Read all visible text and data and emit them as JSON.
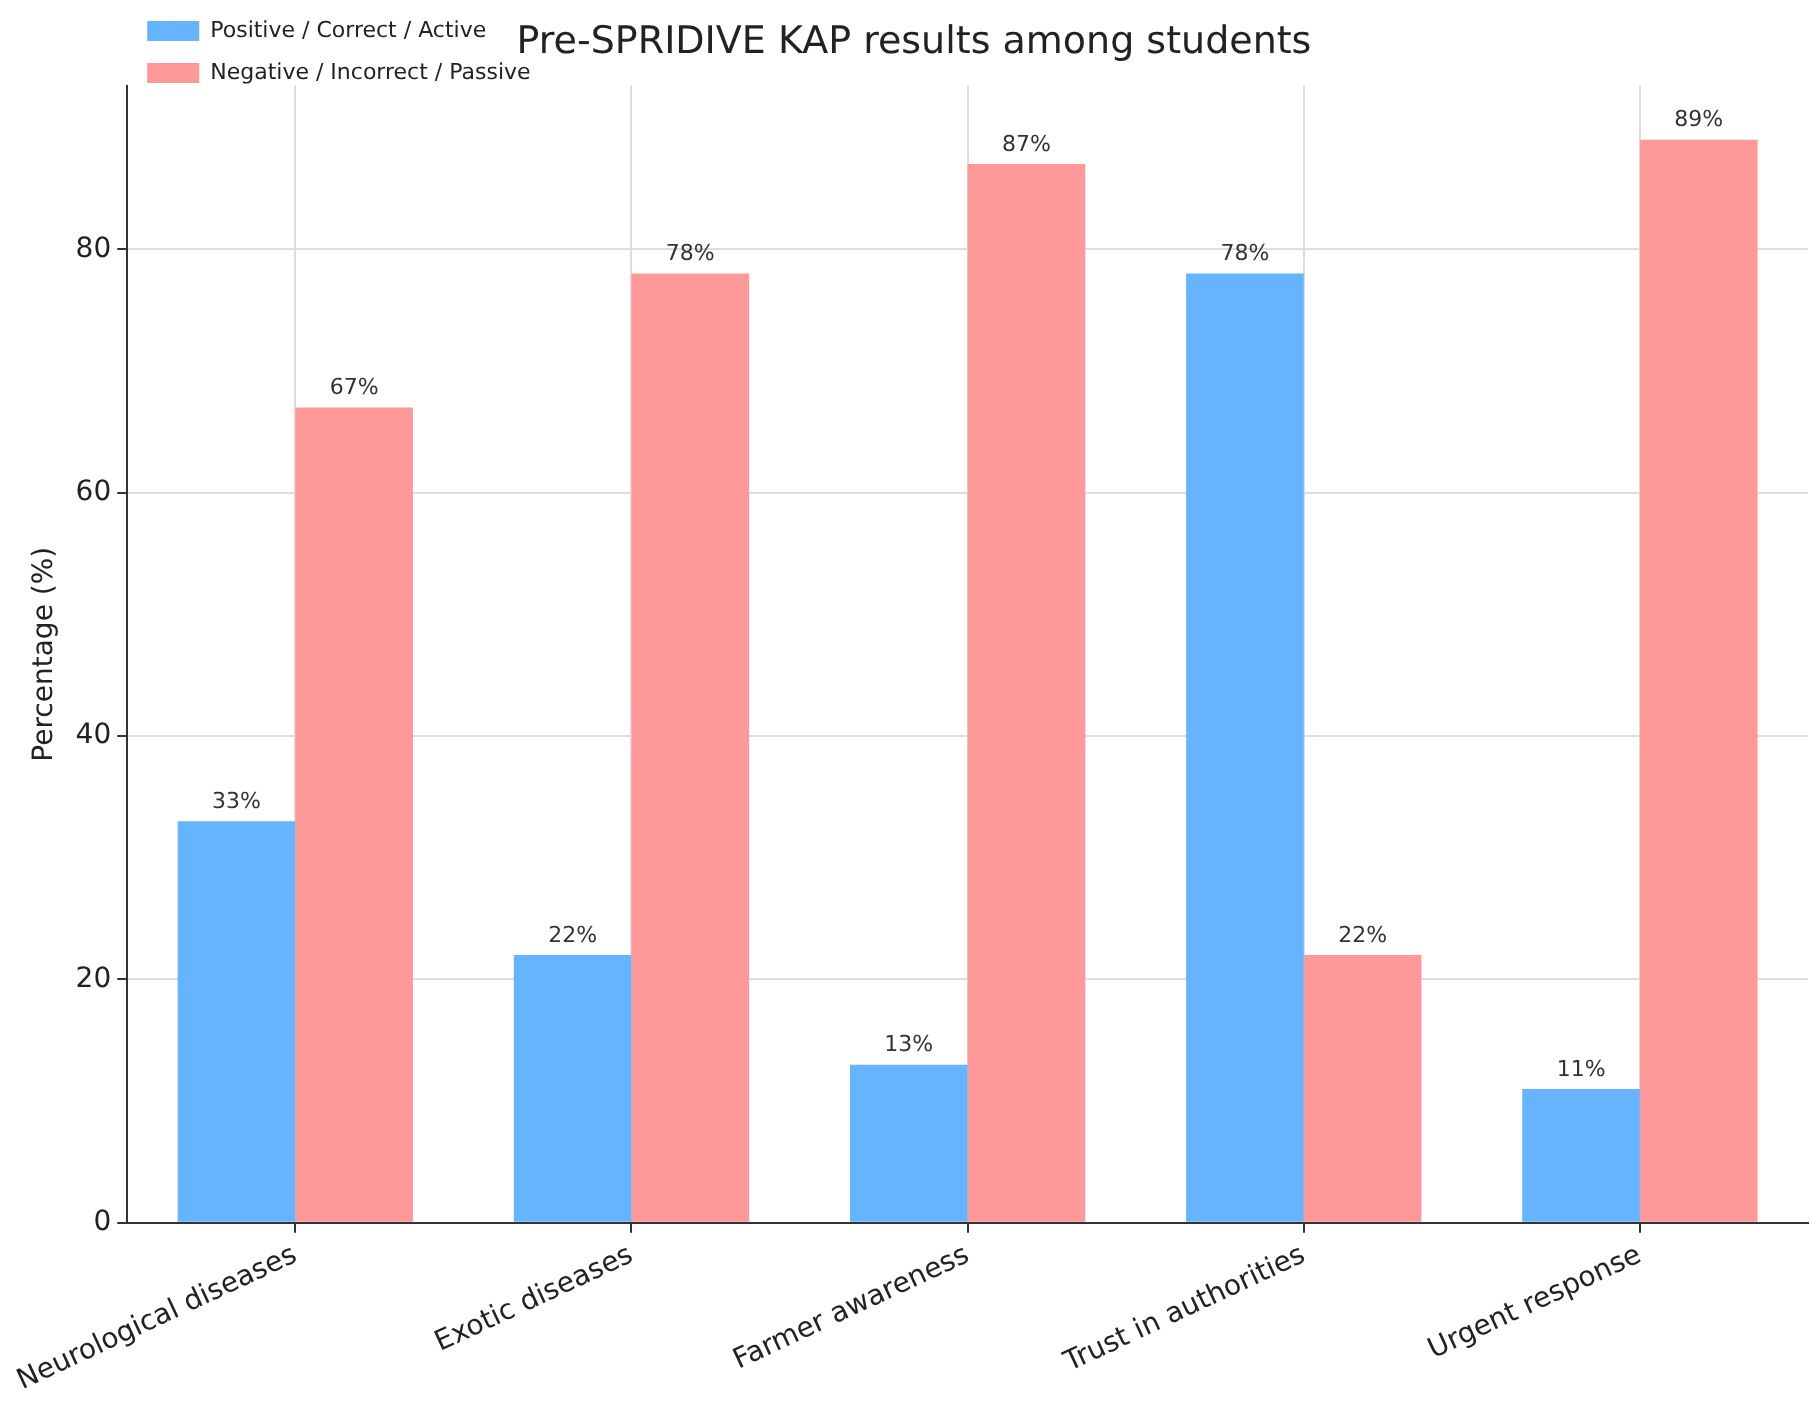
{
  "chart_data": {
    "type": "bar",
    "title": "Pre-SPRIDIVE KAP results among students",
    "ylabel": "Percentage (%)",
    "categories": [
      "Neurological diseases",
      "Exotic diseases",
      "Farmer awareness",
      "Trust in authorities",
      "Urgent response"
    ],
    "series": [
      {
        "name": "Positive / Correct / Active",
        "color": "#66b3ff",
        "values": [
          33,
          22,
          13,
          78,
          11
        ],
        "value_labels": [
          "33%",
          "22%",
          "13%",
          "78%",
          "11%"
        ]
      },
      {
        "name": "Negative / Incorrect / Passive",
        "color": "#ff9999",
        "values": [
          67,
          78,
          87,
          22,
          89
        ],
        "value_labels": [
          "67%",
          "78%",
          "87%",
          "22%",
          "89%"
        ]
      }
    ],
    "ylim": [
      0,
      93.45
    ],
    "yticks": [
      0,
      20,
      40,
      60,
      80
    ],
    "grid": true,
    "legend": "top left"
  }
}
